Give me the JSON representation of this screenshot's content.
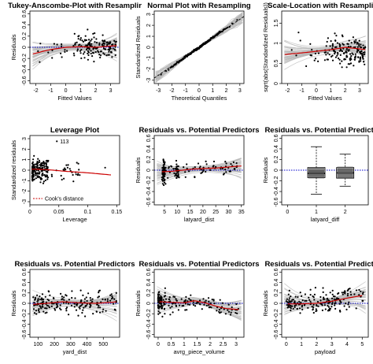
{
  "chart_data": [
    {
      "type": "scatter",
      "title": "Tukey-Anscombe-Plot with Resamplir",
      "xlabel": "Fitted Values",
      "ylabel": "Residuals",
      "xlim": [
        -2.4,
        3.6
      ],
      "ylim": [
        -0.65,
        0.65
      ],
      "xticks": [
        -2,
        -1,
        0,
        1,
        2,
        3
      ],
      "yticks": [
        -0.6,
        -0.4,
        -0.2,
        0,
        0.2,
        0.4,
        0.6
      ],
      "reference_line": {
        "y": 0,
        "style": "dotted",
        "color": "#0000cc"
      },
      "smoother": {
        "x": [
          -2.2,
          -1.5,
          -1,
          -0.5,
          0,
          1,
          2,
          3,
          3.4
        ],
        "y": [
          -0.12,
          -0.07,
          -0.04,
          -0.02,
          0,
          0.01,
          0,
          0.02,
          0.03
        ],
        "color": "#cc0000"
      },
      "resampling_band": {
        "color": "#b8b8b8"
      },
      "points": {
        "n": 170,
        "x_dist": "concentrated 0.5–3.4, few below 0",
        "y_spread": 0.18
      }
    },
    {
      "type": "scatter",
      "title": "Normal Plot with Resampling",
      "xlabel": "Theoretical Quantiles",
      "ylabel": "Standardized Residuals",
      "xlim": [
        -3.3,
        3.3
      ],
      "ylim": [
        -3.3,
        3.3
      ],
      "xticks": [
        -3,
        -2,
        -1,
        0,
        1,
        2,
        3
      ],
      "yticks": [
        -3,
        -2,
        -1,
        0,
        1,
        2,
        3
      ],
      "qq_line": {
        "slope": 0.85,
        "intercept": 0
      },
      "resampling_band": {
        "color": "#b8b8b8"
      },
      "points": {
        "n": 200
      }
    },
    {
      "type": "scatter",
      "title": "Scale-Location with Resampling",
      "xlabel": "Fitted Values",
      "ylabel": "sqrt(abs(Standardized Residuals))",
      "xlim": [
        -2.4,
        3.6
      ],
      "ylim": [
        0,
        1.8
      ],
      "xticks": [
        -2,
        -1,
        0,
        1,
        2,
        3
      ],
      "yticks": [
        0,
        0.5,
        1,
        1.5
      ],
      "smoother": {
        "x": [
          -2.2,
          -1,
          0,
          1,
          2,
          3,
          3.4
        ],
        "y": [
          0.72,
          0.76,
          0.8,
          0.84,
          0.9,
          0.86,
          0.84
        ],
        "color": "#cc0000"
      },
      "resampling_band": {
        "color": "#b8b8b8"
      },
      "points": {
        "n": 170
      }
    },
    {
      "type": "scatter",
      "title": "Leverage Plot",
      "xlabel": "Leverage",
      "ylabel": "Standardized residuals",
      "xlim": [
        0,
        0.155
      ],
      "ylim": [
        -3.3,
        3.3
      ],
      "xticks": [
        0,
        0.05,
        0.1,
        0.15
      ],
      "yticks": [
        -3,
        -2,
        -1,
        0,
        1,
        2,
        3
      ],
      "annotations": [
        {
          "text": "113",
          "x": 0.052,
          "y": 2.75
        }
      ],
      "legend": {
        "text": "Cook's distance",
        "position": "bottom-left",
        "style": "dashed",
        "color": "#cc0000"
      },
      "smoother": {
        "x": [
          0.003,
          0.03,
          0.06,
          0.1,
          0.14
        ],
        "y": [
          0.1,
          0.05,
          -0.1,
          -0.25,
          -0.45
        ],
        "color": "#cc0000"
      },
      "points": {
        "n": 200
      }
    },
    {
      "type": "scatter",
      "title": "Residuals vs. Potential Predictors",
      "xlabel": "latyard_dist",
      "ylabel": "Residuals",
      "xlim": [
        1,
        36
      ],
      "ylim": [
        -0.65,
        0.65
      ],
      "xticks": [
        5,
        10,
        15,
        20,
        25,
        30,
        35
      ],
      "yticks": [
        -0.6,
        -0.4,
        -0.2,
        0,
        0.2,
        0.4,
        0.6
      ],
      "reference_line": {
        "y": 0,
        "style": "dotted",
        "color": "#0000cc"
      },
      "smoother": {
        "x": [
          4,
          8,
          12,
          16,
          20,
          25,
          30,
          35
        ],
        "y": [
          -0.03,
          -0.02,
          0,
          0.02,
          0.03,
          0.04,
          0.06,
          0.08
        ],
        "color": "#cc0000"
      },
      "resampling_band": {
        "color": "#b8b8b8"
      },
      "points": {
        "n": 170
      }
    },
    {
      "type": "boxplot",
      "title": "Residuals vs. Potential Predictors",
      "xlabel": "latyard_diff",
      "ylabel": "Residuals",
      "xlim": [
        -0.2,
        2.8
      ],
      "ylim": [
        -0.65,
        0.65
      ],
      "xticks": [
        0,
        1,
        2
      ],
      "yticks": [
        -0.6,
        -0.4,
        -0.2,
        0,
        0.2,
        0.4,
        0.6
      ],
      "reference_line": {
        "y": 0,
        "style": "dotted",
        "color": "#0000cc"
      },
      "boxes": [
        {
          "x": 1,
          "min": -0.45,
          "q1": -0.14,
          "median": -0.06,
          "q3": 0.05,
          "max": 0.44
        },
        {
          "x": 2,
          "min": -0.3,
          "q1": -0.15,
          "median": -0.05,
          "q3": 0.05,
          "max": 0.3
        }
      ],
      "box_color": "#c8c8c8"
    },
    {
      "type": "scatter",
      "title": "Residuals vs. Potential Predictors",
      "xlabel": "yard_dist",
      "ylabel": "Residuals",
      "xlim": [
        50,
        600
      ],
      "ylim": [
        -0.65,
        0.65
      ],
      "xticks": [
        100,
        200,
        300,
        400,
        500
      ],
      "yticks": [
        -0.6,
        -0.4,
        -0.2,
        0,
        0.2,
        0.4,
        0.6
      ],
      "reference_line": {
        "y": 0,
        "style": "dotted",
        "color": "#0000cc"
      },
      "smoother": {
        "x": [
          70,
          150,
          250,
          350,
          450,
          550,
          580
        ],
        "y": [
          -0.02,
          0,
          0.03,
          0.01,
          0,
          0.02,
          0.03
        ],
        "color": "#cc0000"
      },
      "resampling_band": {
        "color": "#b8b8b8"
      },
      "points": {
        "n": 180
      }
    },
    {
      "type": "scatter",
      "title": "Residuals vs. Potential Predictors",
      "xlabel": "avrg_piece_volume",
      "ylabel": "Residuals",
      "xlim": [
        -0.15,
        3.3
      ],
      "ylim": [
        -0.65,
        0.65
      ],
      "xticks": [
        0,
        0.5,
        1,
        1.5,
        2,
        2.5,
        3
      ],
      "yticks": [
        -0.6,
        -0.4,
        -0.2,
        0,
        0.2,
        0.4,
        0.6
      ],
      "reference_line": {
        "y": 0,
        "style": "dotted",
        "color": "#0000cc"
      },
      "smoother": {
        "x": [
          0.05,
          0.5,
          1,
          1.4,
          1.8,
          2.2,
          2.6,
          3.1
        ],
        "y": [
          0.03,
          0.02,
          0.01,
          0.05,
          0.01,
          -0.05,
          -0.1,
          -0.12
        ],
        "color": "#cc0000"
      },
      "resampling_band": {
        "color": "#b8b8b8"
      },
      "points": {
        "n": 180
      }
    },
    {
      "type": "scatter",
      "title": "Residuals vs. Potential Predictors",
      "xlabel": "payload",
      "ylabel": "Residuals",
      "xlim": [
        -0.3,
        5.4
      ],
      "ylim": [
        -0.65,
        0.65
      ],
      "xticks": [
        0,
        1,
        2,
        3,
        4,
        5
      ],
      "yticks": [
        -0.6,
        -0.4,
        -0.2,
        0,
        0.2,
        0.4,
        0.6
      ],
      "reference_line": {
        "y": 0,
        "style": "dotted",
        "color": "#0000cc"
      },
      "smoother": {
        "x": [
          0.1,
          1,
          2,
          3,
          4,
          5
        ],
        "y": [
          -0.01,
          -0.01,
          0,
          0.04,
          0.1,
          0.15
        ],
        "color": "#cc0000"
      },
      "resampling_band": {
        "color": "#b8b8b8"
      },
      "points": {
        "n": 180
      }
    }
  ]
}
